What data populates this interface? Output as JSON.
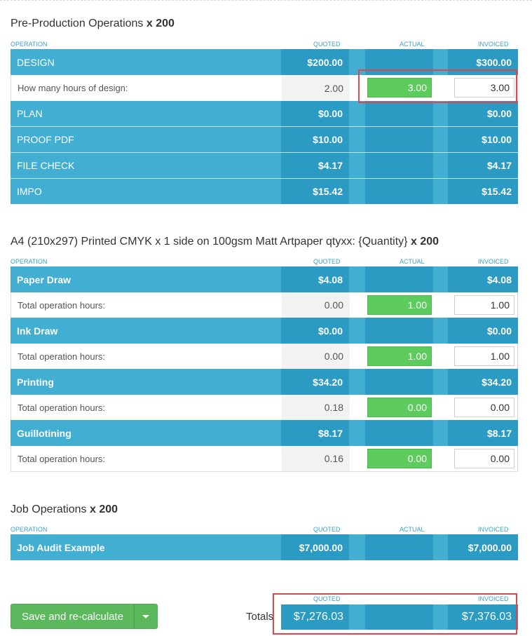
{
  "columns": {
    "operation": "OPERATION",
    "quoted": "QUOTED",
    "actual": "ACTUAL",
    "invoiced": "INVOICED"
  },
  "sections": [
    {
      "title": "Pre-Production Operations",
      "qty": "x 200",
      "rows": [
        {
          "type": "op",
          "label": "DESIGN",
          "quoted": "$200.00",
          "invoiced": "$300.00"
        },
        {
          "type": "hour",
          "label": "How many hours of design:",
          "quoted": "2.00",
          "actual": "3.00",
          "invoiced": "3.00"
        },
        {
          "type": "op",
          "label": "PLAN",
          "quoted": "$0.00",
          "invoiced": "$0.00"
        },
        {
          "type": "op",
          "label": "PROOF PDF",
          "quoted": "$10.00",
          "invoiced": "$10.00"
        },
        {
          "type": "op",
          "label": "FILE CHECK",
          "quoted": "$4.17",
          "invoiced": "$4.17"
        },
        {
          "type": "op",
          "label": "IMPO",
          "quoted": "$15.42",
          "invoiced": "$15.42"
        }
      ]
    },
    {
      "title": "A4 (210x297) Printed CMYK x 1 side on 100gsm Matt Artpaper qtyxx: {Quantity}",
      "qty": "x 200",
      "rows": [
        {
          "type": "op",
          "label": "Paper Draw",
          "quoted": "$4.08",
          "invoiced": "$4.08"
        },
        {
          "type": "hour",
          "label": "Total operation hours:",
          "quoted": "0.00",
          "actual": "1.00",
          "invoiced": "1.00"
        },
        {
          "type": "op",
          "label": "Ink Draw",
          "quoted": "$0.00",
          "invoiced": "$0.00"
        },
        {
          "type": "hour",
          "label": "Total operation hours:",
          "quoted": "0.00",
          "actual": "1.00",
          "invoiced": "1.00"
        },
        {
          "type": "op",
          "label": "Printing",
          "quoted": "$34.20",
          "invoiced": "$34.20"
        },
        {
          "type": "hour",
          "label": "Total operation hours:",
          "quoted": "0.18",
          "actual": "0.00",
          "invoiced": "0.00"
        },
        {
          "type": "op",
          "label": "Guillotining",
          "quoted": "$8.17",
          "invoiced": "$8.17"
        },
        {
          "type": "hour",
          "label": "Total operation hours:",
          "quoted": "0.16",
          "actual": "0.00",
          "invoiced": "0.00"
        }
      ]
    },
    {
      "title": "Job Operations",
      "qty": "x 200",
      "rows": [
        {
          "type": "op",
          "label": "Job Audit Example",
          "quoted": "$7,000.00",
          "invoiced": "$7,000.00"
        }
      ]
    }
  ],
  "footer": {
    "save_label": "Save and re-calculate",
    "totals_label": "Totals",
    "totals_quoted_header": "QUOTED",
    "totals_invoiced_header": "INVOICED",
    "total_quoted": "$7,276.03",
    "total_invoiced": "$7,376.03"
  },
  "colors": {
    "op_row": "#41aed2",
    "op_value": "#2b9bc4",
    "actual_input": "#5ecb5e",
    "header_text": "#3ba0c8",
    "highlight": "#e0474c",
    "save_button": "#5cb85c"
  }
}
